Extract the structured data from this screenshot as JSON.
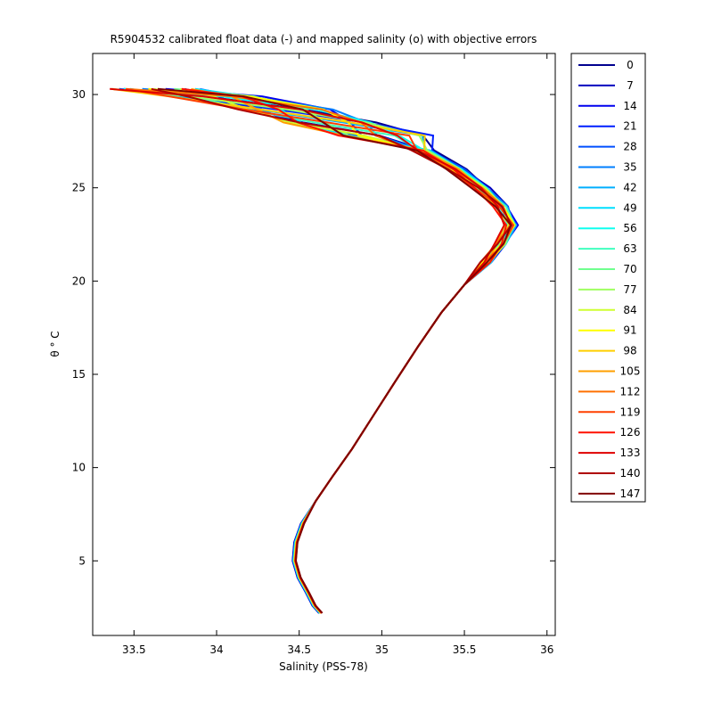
{
  "chart_data": {
    "type": "line",
    "title": "R5904532 calibrated float data (-) and mapped salinity (o) with objective errors",
    "xlabel": "Salinity (PSS-78)",
    "ylabel": "θ ° C",
    "xlim": [
      33.25,
      36.05
    ],
    "ylim": [
      1.0,
      32.2
    ],
    "xticks": [
      33.5,
      34,
      34.5,
      35,
      35.5,
      36
    ],
    "xtick_labels": [
      "33.5",
      "34",
      "34.5",
      "35",
      "35.5",
      "36"
    ],
    "yticks": [
      5,
      10,
      15,
      20,
      25,
      30
    ],
    "ytick_labels": [
      "5",
      "10",
      "15",
      "20",
      "25",
      "30"
    ],
    "grid": false,
    "legend_position": "outside-right",
    "legend": [
      {
        "name": "0",
        "color": "#00008f"
      },
      {
        "name": "7",
        "color": "#0000bf"
      },
      {
        "name": "14",
        "color": "#0000ef"
      },
      {
        "name": "21",
        "color": "#001fff"
      },
      {
        "name": "28",
        "color": "#004fff"
      },
      {
        "name": "35",
        "color": "#007fff"
      },
      {
        "name": "42",
        "color": "#00afff"
      },
      {
        "name": "49",
        "color": "#00dfff"
      },
      {
        "name": "56",
        "color": "#10ffef"
      },
      {
        "name": "63",
        "color": "#40ffbf"
      },
      {
        "name": "70",
        "color": "#70ff8f"
      },
      {
        "name": "77",
        "color": "#9fff60"
      },
      {
        "name": "84",
        "color": "#cfff30"
      },
      {
        "name": "91",
        "color": "#ffff00"
      },
      {
        "name": "98",
        "color": "#ffcf00"
      },
      {
        "name": "105",
        "color": "#ff9f00"
      },
      {
        "name": "112",
        "color": "#ff7000"
      },
      {
        "name": "119",
        "color": "#ff4000"
      },
      {
        "name": "126",
        "color": "#ff1000"
      },
      {
        "name": "133",
        "color": "#df0000"
      },
      {
        "name": "140",
        "color": "#af0000"
      },
      {
        "name": "147",
        "color": "#800000"
      }
    ],
    "series_template": {
      "deep_profile": [
        [
          34.63,
          2.2
        ],
        [
          34.59,
          2.6
        ],
        [
          34.55,
          3.3
        ],
        [
          34.5,
          4.1
        ],
        [
          34.47,
          5.0
        ],
        [
          34.48,
          6.0
        ],
        [
          34.52,
          7.0
        ],
        [
          34.6,
          8.2
        ],
        [
          34.7,
          9.5
        ],
        [
          34.82,
          11.0
        ],
        [
          34.95,
          12.8
        ],
        [
          35.08,
          14.6
        ],
        [
          35.22,
          16.5
        ],
        [
          35.36,
          18.3
        ],
        [
          35.5,
          19.8
        ],
        [
          35.63,
          21.0
        ],
        [
          35.72,
          22.0
        ],
        [
          35.78,
          23.0
        ],
        [
          35.72,
          24.0
        ],
        [
          35.6,
          25.0
        ],
        [
          35.45,
          26.0
        ],
        [
          35.25,
          27.0
        ],
        [
          35.0,
          27.8
        ],
        [
          34.7,
          28.5
        ],
        [
          34.4,
          29.2
        ],
        [
          34.0,
          29.9
        ],
        [
          33.6,
          30.3
        ]
      ]
    },
    "series_variation": {
      "count": 22,
      "note": "Each legend entry is one float profile following the template with small salinity offsets in the upper ocean."
    }
  }
}
